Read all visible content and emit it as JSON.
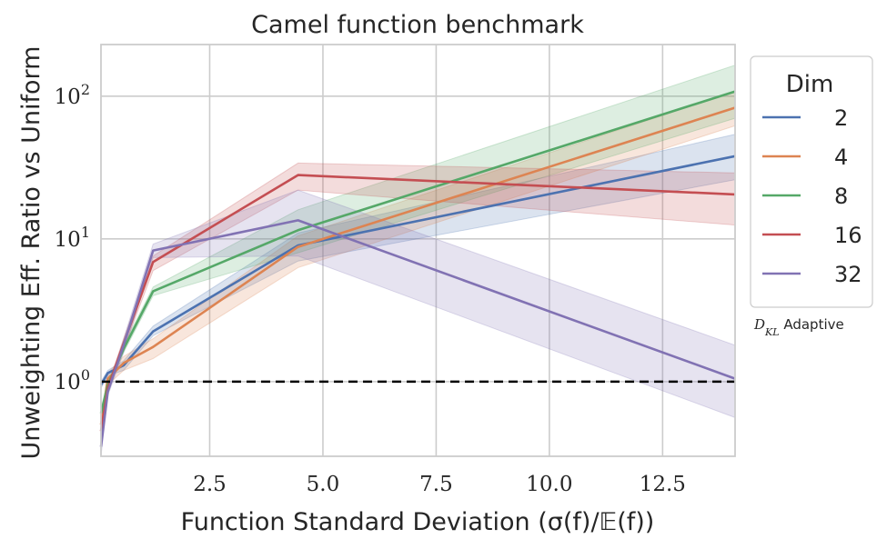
{
  "chart_data": {
    "type": "line",
    "title": "Camel function benchmark",
    "xlabel": "Function Standard Deviation (σ(f)/𝔼(f))",
    "ylabel": "Unweighting Eff. Ratio vs Uniform",
    "xlim": [
      0.1,
      14.1
    ],
    "ylim": [
      0.3,
      230
    ],
    "yscale": "log",
    "xticks": [
      2.5,
      5.0,
      7.5,
      10.0,
      12.5
    ],
    "xtick_labels": [
      "2.5",
      "5.0",
      "7.5",
      "10.0",
      "12.5"
    ],
    "yticks": [
      1,
      10,
      100
    ],
    "ytick_labels": [
      {
        "base": "10",
        "exp": "0"
      },
      {
        "base": "10",
        "exp": "1"
      },
      {
        "base": "10",
        "exp": "2"
      }
    ],
    "grid": true,
    "reference_line": {
      "y": 1.0,
      "style": "dashed",
      "color": "#000000"
    },
    "legend": {
      "title": "Dim",
      "placement": "outside-right"
    },
    "annotation": {
      "math": "D",
      "sub": "KL",
      "text": " Adaptive"
    },
    "series": [
      {
        "name": "2",
        "color": "#4c72b0",
        "x": [
          0.1,
          0.25,
          0.6,
          1.25,
          4.45,
          14.1
        ],
        "y": [
          0.95,
          1.15,
          1.3,
          2.25,
          9.0,
          38
        ],
        "lower": [
          0.9,
          1.1,
          1.2,
          2.1,
          7.0,
          26
        ],
        "upper": [
          1.0,
          1.2,
          1.4,
          2.45,
          11.0,
          54
        ]
      },
      {
        "name": "4",
        "color": "#dd8452",
        "x": [
          0.1,
          0.25,
          0.6,
          1.25,
          4.45,
          14.1
        ],
        "y": [
          0.5,
          1.05,
          1.35,
          1.75,
          8.8,
          83
        ],
        "lower": [
          0.45,
          0.95,
          1.2,
          1.45,
          6.3,
          62
        ],
        "upper": [
          0.55,
          1.15,
          1.5,
          2.0,
          10.5,
          108
        ]
      },
      {
        "name": "8",
        "color": "#55a868",
        "x": [
          0.1,
          0.25,
          0.6,
          1.25,
          4.45,
          14.1
        ],
        "y": [
          0.6,
          0.95,
          1.7,
          4.3,
          11.5,
          108
        ],
        "lower": [
          0.55,
          0.9,
          1.6,
          4.0,
          8.0,
          70
        ],
        "upper": [
          0.65,
          1.0,
          1.8,
          4.6,
          16.0,
          165
        ]
      },
      {
        "name": "16",
        "color": "#c44e52",
        "x": [
          0.1,
          0.25,
          0.6,
          1.25,
          4.45,
          14.1
        ],
        "y": [
          0.45,
          0.9,
          1.85,
          6.9,
          28,
          20.5
        ],
        "lower": [
          0.4,
          0.85,
          1.7,
          6.0,
          22,
          12.5
        ],
        "upper": [
          0.5,
          0.95,
          2.0,
          7.6,
          34,
          29
        ]
      },
      {
        "name": "32",
        "color": "#8172b3",
        "x": [
          0.1,
          0.25,
          0.6,
          1.25,
          4.45,
          14.1
        ],
        "y": [
          0.35,
          0.85,
          1.8,
          8.3,
          13.5,
          1.05
        ],
        "lower": [
          0.3,
          0.8,
          1.6,
          7.4,
          7.6,
          0.56
        ],
        "upper": [
          0.4,
          0.9,
          2.0,
          9.2,
          22,
          1.8
        ]
      }
    ]
  }
}
